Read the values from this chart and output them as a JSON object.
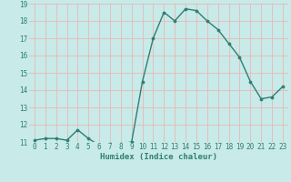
{
  "x": [
    0,
    1,
    2,
    3,
    4,
    5,
    6,
    7,
    8,
    9,
    10,
    11,
    12,
    13,
    14,
    15,
    16,
    17,
    18,
    19,
    20,
    21,
    22,
    23
  ],
  "y": [
    11.1,
    11.2,
    11.2,
    11.1,
    11.7,
    11.2,
    10.8,
    10.9,
    10.9,
    11.0,
    14.5,
    17.0,
    18.5,
    18.0,
    18.7,
    18.6,
    18.0,
    17.5,
    16.7,
    15.9,
    14.5,
    13.5,
    13.6,
    14.2
  ],
  "xlabel": "Humidex (Indice chaleur)",
  "ylim": [
    11,
    19
  ],
  "xlim_min": -0.5,
  "xlim_max": 23.5,
  "yticks": [
    11,
    12,
    13,
    14,
    15,
    16,
    17,
    18,
    19
  ],
  "xticks": [
    0,
    1,
    2,
    3,
    4,
    5,
    6,
    7,
    8,
    9,
    10,
    11,
    12,
    13,
    14,
    15,
    16,
    17,
    18,
    19,
    20,
    21,
    22,
    23
  ],
  "line_color": "#2d7f74",
  "marker_color": "#2d7f74",
  "bg_color": "#c8eae8",
  "grid_color": "#e8b8b8",
  "tick_label_color": "#2d7f74",
  "xlabel_color": "#2d7f74",
  "marker_size": 2.2,
  "line_width": 1.0,
  "tick_fontsize": 5.5,
  "xlabel_fontsize": 6.5
}
